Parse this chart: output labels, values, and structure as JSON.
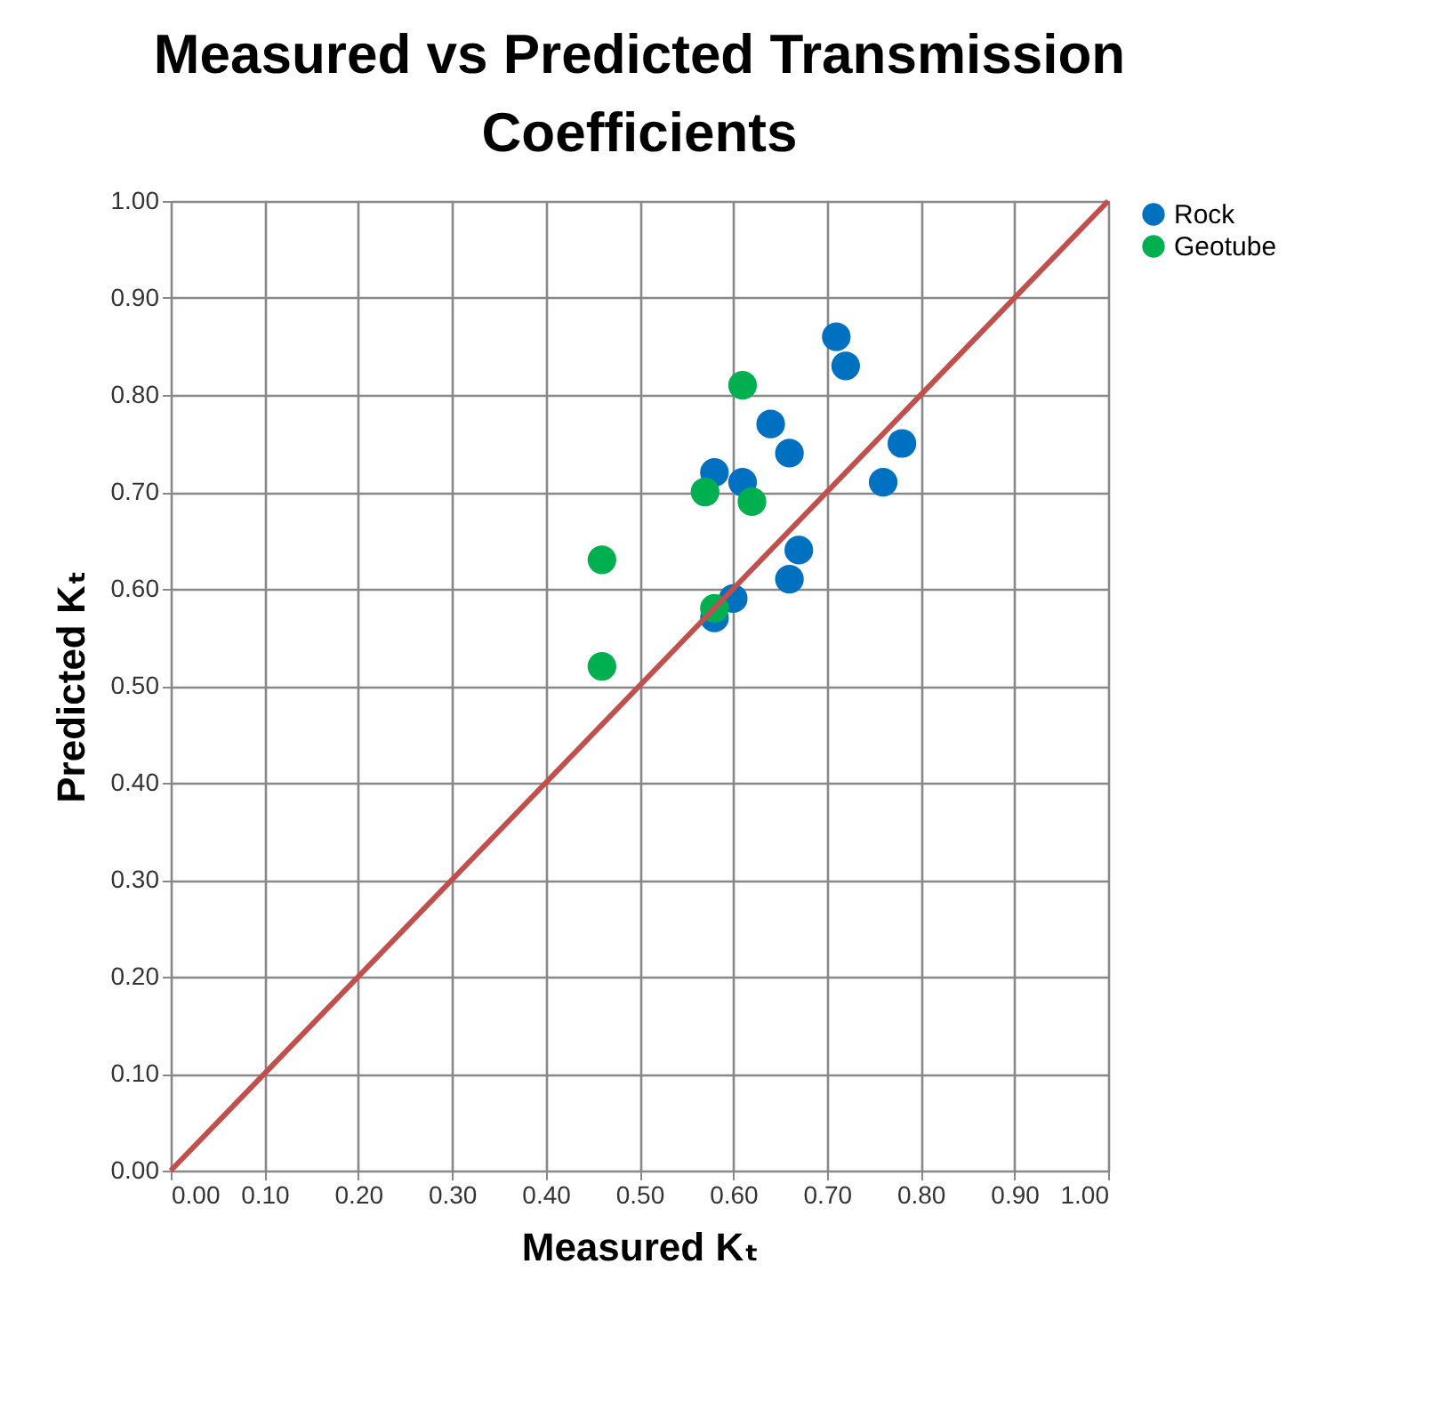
{
  "chart_data": {
    "type": "scatter",
    "title": "Measured vs Predicted Transmission Coefficients",
    "xlabel": "Measured Kₜ",
    "ylabel": "Predicted Kₜ",
    "xlim": [
      0,
      1
    ],
    "ylim": [
      0,
      1
    ],
    "xticks": [
      {
        "value": 0,
        "label": "0.00"
      },
      {
        "value": 0.1,
        "label": "0.10"
      },
      {
        "value": 0.2,
        "label": "0.20"
      },
      {
        "value": 0.3,
        "label": "0.30"
      },
      {
        "value": 0.4,
        "label": "0.40"
      },
      {
        "value": 0.5,
        "label": "0.50"
      },
      {
        "value": 0.6,
        "label": "0.60"
      },
      {
        "value": 0.7,
        "label": "0.70"
      },
      {
        "value": 0.8,
        "label": "0.80"
      },
      {
        "value": 0.9,
        "label": "0.90"
      },
      {
        "value": 1,
        "label": "1.00"
      }
    ],
    "yticks": [
      {
        "value": 0,
        "label": "0.00"
      },
      {
        "value": 0.1,
        "label": "0.10"
      },
      {
        "value": 0.2,
        "label": "0.20"
      },
      {
        "value": 0.3,
        "label": "0.30"
      },
      {
        "value": 0.4,
        "label": "0.40"
      },
      {
        "value": 0.5,
        "label": "0.50"
      },
      {
        "value": 0.6,
        "label": "0.60"
      },
      {
        "value": 0.7,
        "label": "0.70"
      },
      {
        "value": 0.8,
        "label": "0.80"
      },
      {
        "value": 0.9,
        "label": "0.90"
      },
      {
        "value": 1,
        "label": "1.00"
      }
    ],
    "grid": true,
    "legend": "right",
    "marker": "circle",
    "series": [
      {
        "name": "Rock",
        "color": "#0070c0",
        "x": [
          0.71,
          0.72,
          0.64,
          0.66,
          0.78,
          0.76,
          0.58,
          0.61,
          0.67,
          0.66,
          0.6,
          0.58
        ],
        "values": [
          0.86,
          0.83,
          0.77,
          0.74,
          0.75,
          0.71,
          0.72,
          0.71,
          0.64,
          0.61,
          0.59,
          0.57
        ]
      },
      {
        "name": "Geotube",
        "color": "#00b050",
        "x": [
          0.61,
          0.57,
          0.62,
          0.46,
          0.58,
          0.46
        ],
        "values": [
          0.81,
          0.7,
          0.69,
          0.63,
          0.58,
          0.52
        ]
      },
      {
        "type": "line",
        "color": "#c0504d",
        "x": [
          0,
          1
        ],
        "values": [
          0,
          1
        ],
        "marker": "none"
      }
    ]
  }
}
